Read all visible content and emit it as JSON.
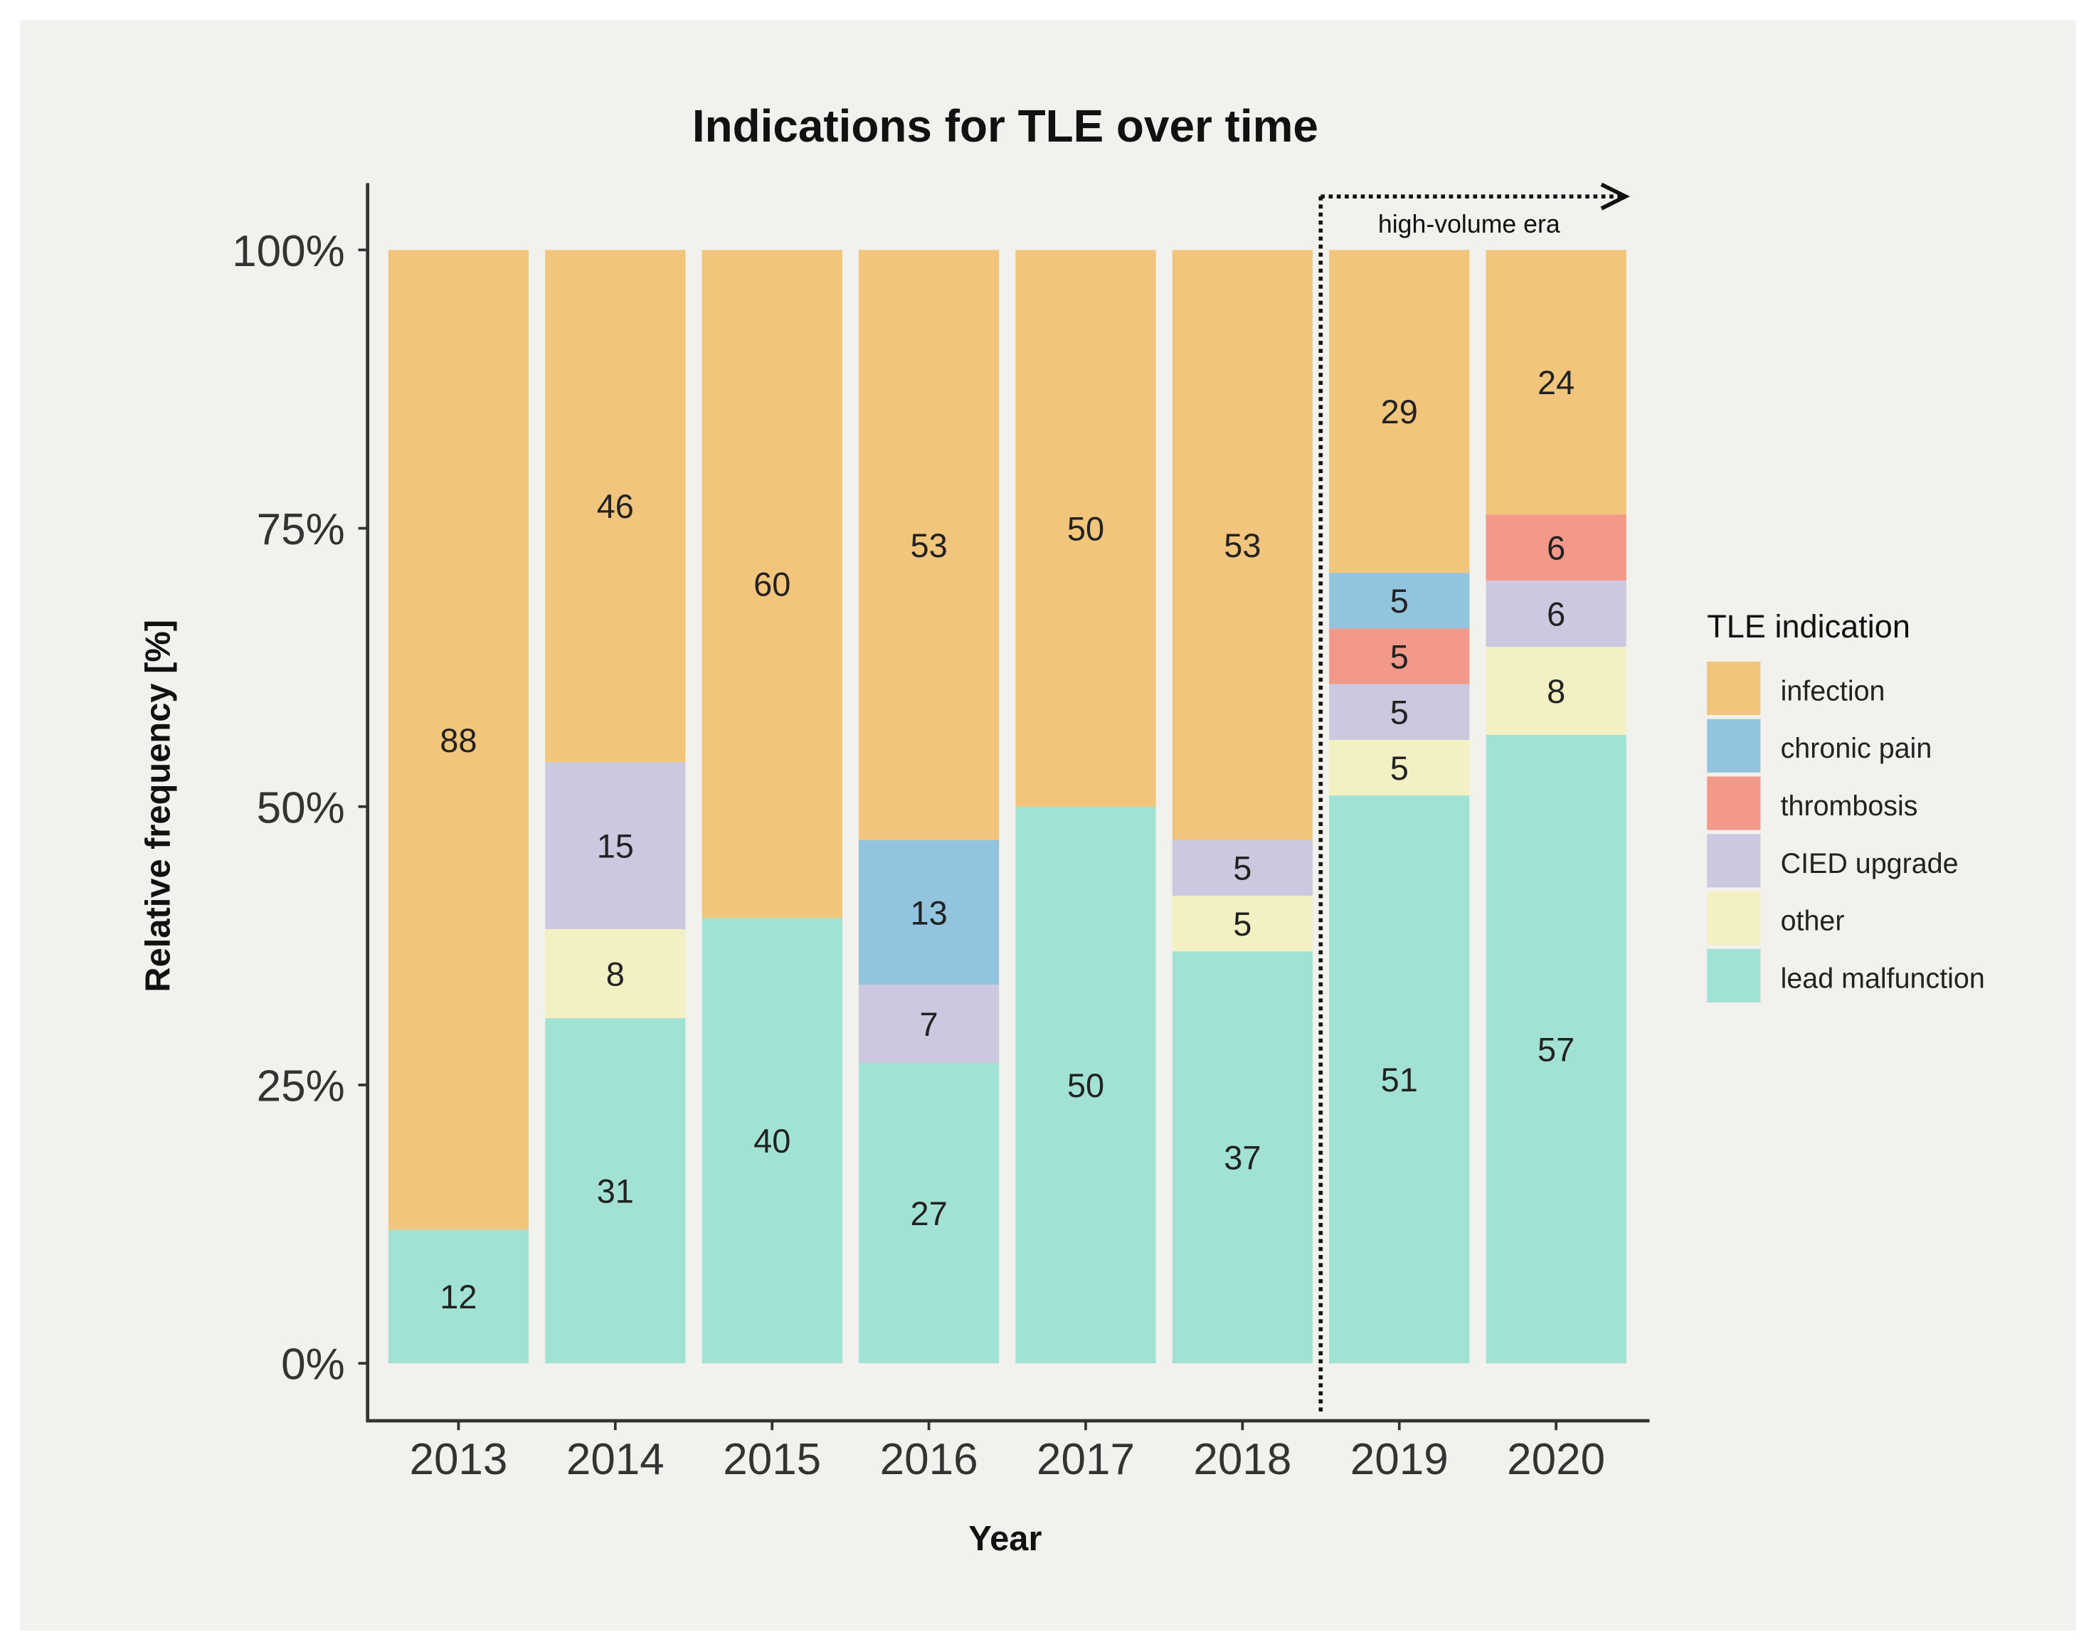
{
  "chart_data": {
    "type": "bar",
    "stacked": true,
    "normalized": true,
    "title": "Indications for TLE over time",
    "xlabel": "Year",
    "ylabel": "Relative frequency [%]",
    "ylim": [
      0,
      100
    ],
    "yticks": [
      "0%",
      "25%",
      "50%",
      "75%",
      "100%"
    ],
    "categories": [
      "2013",
      "2014",
      "2015",
      "2016",
      "2017",
      "2018",
      "2019",
      "2020"
    ],
    "legend_title": "TLE indication",
    "legend_position": "right",
    "series": [
      {
        "name": "lead malfunction",
        "color": "#a1e2d4",
        "values": [
          12,
          31,
          40,
          27,
          50,
          37,
          51,
          57
        ]
      },
      {
        "name": "other",
        "color": "#f3f1c4",
        "values": [
          0,
          8,
          0,
          0,
          0,
          5,
          5,
          8
        ]
      },
      {
        "name": "CIED upgrade",
        "color": "#ccc8e0",
        "values": [
          0,
          15,
          0,
          7,
          0,
          5,
          5,
          6
        ]
      },
      {
        "name": "thrombosis",
        "color": "#f2998a",
        "values": [
          0,
          0,
          0,
          0,
          0,
          0,
          5,
          6
        ]
      },
      {
        "name": "chronic pain",
        "color": "#93c4de",
        "values": [
          0,
          0,
          0,
          13,
          0,
          0,
          5,
          0
        ]
      },
      {
        "name": "infection",
        "color": "#f2c57c",
        "values": [
          88,
          46,
          60,
          53,
          50,
          53,
          29,
          24
        ]
      }
    ],
    "legend_order": [
      "infection",
      "chronic pain",
      "thrombosis",
      "CIED upgrade",
      "other",
      "lead malfunction"
    ],
    "annotation": {
      "text": "high-volume era",
      "from_category": "2019"
    }
  }
}
